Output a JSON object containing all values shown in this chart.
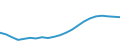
{
  "x": [
    0,
    1,
    2,
    3,
    4,
    5,
    6,
    7,
    8,
    9,
    10,
    11,
    12,
    13,
    14,
    15,
    16,
    17,
    18,
    19,
    20
  ],
  "y": [
    -2.0,
    -2.8,
    -4.2,
    -5.5,
    -5.0,
    -4.5,
    -4.8,
    -4.2,
    -4.6,
    -4.0,
    -3.2,
    -2.0,
    -0.5,
    1.5,
    3.5,
    5.0,
    6.0,
    6.3,
    6.0,
    5.8,
    5.6
  ],
  "line_color": "#3399cc",
  "line_width": 1.4,
  "background_color": "#ffffff",
  "ylim": [
    -8,
    14
  ],
  "xlim": [
    0,
    20
  ]
}
